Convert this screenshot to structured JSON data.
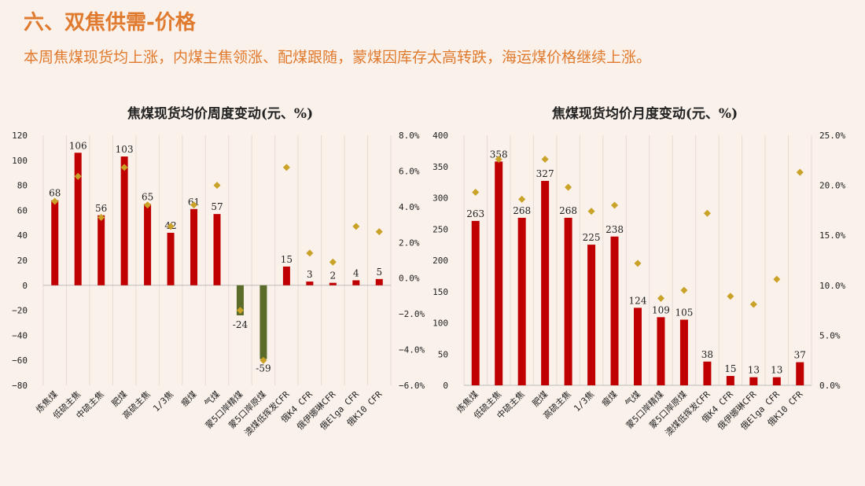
{
  "header": {
    "title": "六、双焦供需-价格",
    "subtitle": "本周焦煤现货均上涨，内煤主焦领涨、配煤跟随，蒙煤因库存太高转跌，海运煤价格继续上涨。"
  },
  "colors": {
    "title": "#e07a2e",
    "bar_positive": "#c00000",
    "bar_negative": "#5a6b2a",
    "marker": "#c9a227",
    "background": "#faf1ea"
  },
  "chart_data": [
    {
      "type": "bar",
      "title": "焦煤现货均价周度变动(元、%)",
      "categories": [
        "炼焦煤",
        "低硫主焦",
        "中硫主焦",
        "肥煤",
        "高硫主焦",
        "1/3焦",
        "瘦煤",
        "气煤",
        "蒙5口岸精煤",
        "蒙5口岸原煤",
        "澳煤低挥发CFR",
        "俄K4 CFR",
        "俄伊娜琳CFR",
        "俄Elga CFR",
        "俄K10 CFR"
      ],
      "series": [
        {
          "axis": "left",
          "kind": "bar",
          "values": [
            68,
            106,
            56,
            103,
            65,
            42,
            61,
            57,
            -24,
            -59,
            15,
            3,
            2,
            4,
            5
          ]
        },
        {
          "axis": "right",
          "kind": "marker",
          "values": [
            4.3,
            5.7,
            3.4,
            6.2,
            4.1,
            2.9,
            4.1,
            5.2,
            -1.8,
            -4.6,
            6.2,
            1.4,
            0.9,
            2.9,
            2.6
          ]
        }
      ],
      "y_ticks": [
        "120",
        "100",
        "80",
        "60",
        "40",
        "20",
        "0",
        "−20",
        "−40",
        "−60",
        "−80"
      ],
      "y2_ticks": [
        "8.0%",
        "6.0%",
        "4.0%",
        "2.0%",
        "0.0%",
        "−2.0%",
        "−4.0%",
        "−6.0%"
      ],
      "ylim": [
        -80,
        120
      ],
      "y2lim": [
        -6,
        8
      ]
    },
    {
      "type": "bar",
      "title": "焦煤现货均价月度变动(元、%)",
      "categories": [
        "炼焦煤",
        "低硫主焦",
        "中硫主焦",
        "肥煤",
        "高硫主焦",
        "1/3焦",
        "瘦煤",
        "气煤",
        "蒙5口岸精煤",
        "蒙5口岸原煤",
        "澳煤低挥发CFR",
        "俄K4 CFR",
        "俄伊娜琳CFR",
        "俄Elga CFR",
        "俄K10 CFR"
      ],
      "series": [
        {
          "axis": "left",
          "kind": "bar",
          "values": [
            263,
            358,
            268,
            327,
            268,
            225,
            238,
            124,
            109,
            105,
            38,
            15,
            13,
            13,
            37
          ]
        },
        {
          "axis": "right",
          "kind": "marker",
          "values": [
            19.3,
            22.6,
            18.6,
            22.6,
            19.8,
            17.4,
            18.0,
            12.2,
            8.7,
            9.5,
            17.2,
            8.9,
            8.1,
            10.6,
            21.3
          ]
        }
      ],
      "y_ticks": [
        "400",
        "350",
        "300",
        "250",
        "200",
        "150",
        "100",
        "50",
        "0"
      ],
      "y2_ticks": [
        "25.0%",
        "20.0%",
        "15.0%",
        "10.0%",
        "5.0%",
        "0.0%"
      ],
      "ylim": [
        0,
        400
      ],
      "y2lim": [
        0,
        25
      ]
    }
  ]
}
